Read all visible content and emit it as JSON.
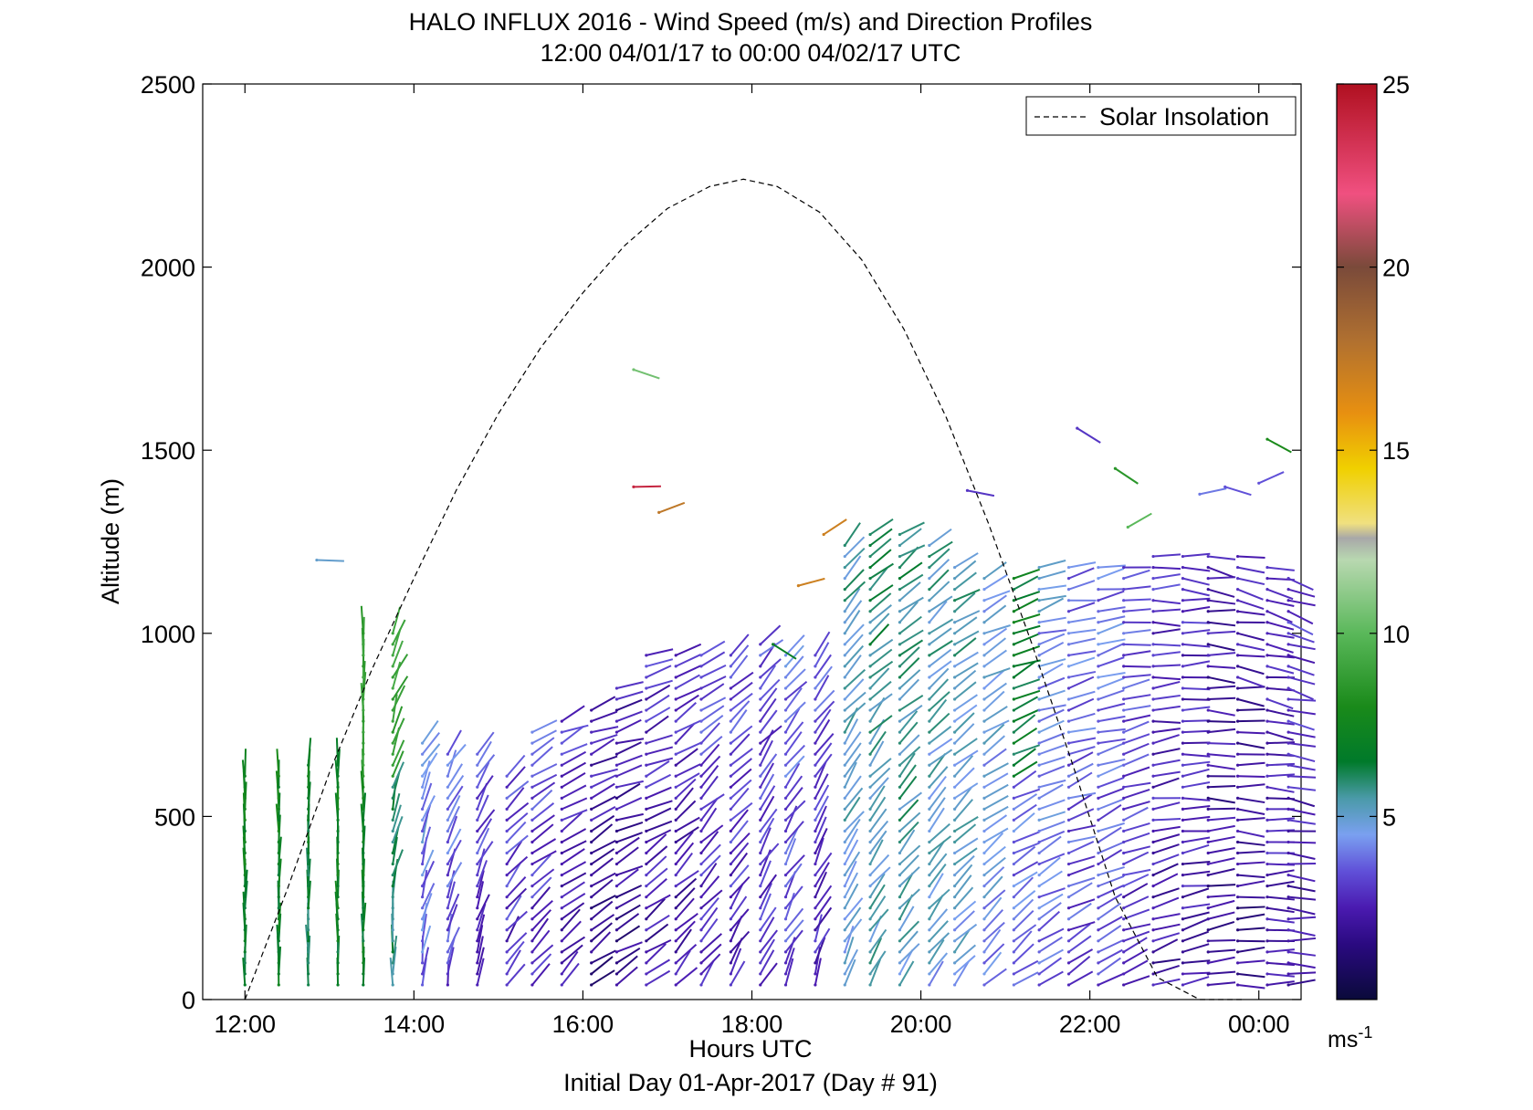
{
  "chart_data": {
    "type": "wind-barb-profile",
    "title_line1": "HALO INFLUX 2016 - Wind Speed (m/s) and Direction Profiles",
    "title_line2": "12:00 04/01/17 to 00:00 04/02/17  UTC",
    "xlabel": "Hours UTC",
    "xlabel2": "Initial Day 01-Apr-2017 (Day # 91)",
    "ylabel": "Altitude (m)",
    "xlim": [
      11.5,
      24.5
    ],
    "ylim": [
      0,
      2500
    ],
    "x_ticks": [
      {
        "value": 12,
        "label": "12:00"
      },
      {
        "value": 14,
        "label": "14:00"
      },
      {
        "value": 16,
        "label": "16:00"
      },
      {
        "value": 18,
        "label": "18:00"
      },
      {
        "value": 20,
        "label": "20:00"
      },
      {
        "value": 22,
        "label": "22:00"
      },
      {
        "value": 24,
        "label": "00:00"
      }
    ],
    "y_ticks": [
      0,
      500,
      1000,
      1500,
      2000,
      2500
    ],
    "legend": {
      "position": "top-right",
      "entries": [
        {
          "label": "Solar Insolation",
          "style": "dashed",
          "color": "#000000"
        }
      ]
    },
    "colorbar": {
      "min": 0,
      "max": 25,
      "ticks": [
        5,
        10,
        15,
        20,
        25
      ],
      "unit": "ms",
      "unit_superscript": "-1",
      "colormap": [
        [
          0,
          "#0a0a3a"
        ],
        [
          1.5,
          "#2a0a80"
        ],
        [
          2.5,
          "#4a1ab0"
        ],
        [
          3.5,
          "#6050d8"
        ],
        [
          4.5,
          "#7aa0f0"
        ],
        [
          5.5,
          "#4a9aa8"
        ],
        [
          6.5,
          "#007a2a"
        ],
        [
          8,
          "#1a8a1a"
        ],
        [
          10,
          "#5ab85a"
        ],
        [
          12,
          "#b8d8b0"
        ],
        [
          12.6,
          "#a8a8a8"
        ],
        [
          13,
          "#f0e080"
        ],
        [
          14.5,
          "#f0d000"
        ],
        [
          16,
          "#e89010"
        ],
        [
          18,
          "#b07030"
        ],
        [
          20,
          "#7a4a3a"
        ],
        [
          22,
          "#f05080"
        ],
        [
          25,
          "#b01020"
        ]
      ]
    },
    "solar_insolation": {
      "x": [
        12.0,
        12.5,
        13.0,
        13.5,
        14.0,
        14.5,
        15.0,
        15.5,
        16.0,
        16.5,
        17.0,
        17.5,
        17.9,
        18.3,
        18.8,
        19.3,
        19.8,
        20.3,
        20.8,
        21.3,
        21.8,
        22.3,
        22.8,
        23.3,
        23.8
      ],
      "y": [
        0,
        300,
        620,
        900,
        1150,
        1390,
        1600,
        1780,
        1930,
        2060,
        2160,
        2220,
        2240,
        2220,
        2150,
        2020,
        1830,
        1590,
        1300,
        980,
        640,
        280,
        60,
        0,
        0
      ]
    },
    "barb_columns": {
      "hours": [
        12.0,
        12.4,
        12.75,
        13.1,
        13.4,
        13.75,
        14.1,
        14.4,
        14.75,
        15.1,
        15.4,
        15.75,
        16.1,
        16.4,
        16.75,
        17.1,
        17.4,
        17.75,
        18.1,
        18.4,
        18.75,
        19.1,
        19.4,
        19.75,
        20.1,
        20.4,
        20.75,
        21.1,
        21.4,
        21.75,
        22.1,
        22.4,
        22.75,
        23.1,
        23.4,
        23.75,
        24.1,
        24.35
      ],
      "top_altitude_m": [
        620,
        620,
        660,
        660,
        1000,
        1000,
        700,
        670,
        670,
        620,
        730,
        760,
        790,
        850,
        950,
        950,
        960,
        960,
        970,
        960,
        960,
        1260,
        1280,
        1280,
        1260,
        1200,
        1160,
        1160,
        1180,
        1180,
        1200,
        1200,
        1220,
        1220,
        1230,
        1230,
        1200,
        1150
      ],
      "speed_m_s": [
        7.5,
        7.5,
        7.0,
        7.5,
        7.5,
        6.5,
        4.5,
        4.0,
        3.5,
        3.5,
        3.5,
        3.0,
        2.5,
        2.5,
        3.0,
        3.0,
        3.5,
        3.5,
        3.5,
        4.0,
        3.5,
        5.5,
        6.0,
        6.0,
        5.5,
        5.5,
        5.0,
        4.5,
        4.5,
        4.0,
        4.0,
        3.5,
        3.0,
        3.0,
        2.5,
        2.5,
        3.0,
        3.0
      ],
      "direction_deg": [
        175,
        175,
        180,
        180,
        190,
        195,
        200,
        200,
        205,
        220,
        230,
        235,
        240,
        245,
        240,
        230,
        225,
        220,
        215,
        215,
        210,
        215,
        220,
        225,
        225,
        230,
        235,
        240,
        245,
        250,
        250,
        255,
        260,
        265,
        270,
        275,
        275,
        280
      ]
    },
    "isolated_barbs": [
      {
        "hour": 12.85,
        "altitude": 1200,
        "speed": 5.0
      },
      {
        "hour": 16.6,
        "altitude": 1720,
        "speed": 10.5
      },
      {
        "hour": 16.6,
        "altitude": 1400,
        "speed": 24.0
      },
      {
        "hour": 16.9,
        "altitude": 1330,
        "speed": 17.5
      },
      {
        "hour": 18.55,
        "altitude": 1130,
        "speed": 17.0
      },
      {
        "hour": 18.85,
        "altitude": 1270,
        "speed": 17.0
      },
      {
        "hour": 18.25,
        "altitude": 970,
        "speed": 7.0
      },
      {
        "hour": 20.55,
        "altitude": 1390,
        "speed": 3.0
      },
      {
        "hour": 21.85,
        "altitude": 1560,
        "speed": 3.0
      },
      {
        "hour": 22.3,
        "altitude": 1450,
        "speed": 8.5
      },
      {
        "hour": 22.45,
        "altitude": 1290,
        "speed": 10.0
      },
      {
        "hour": 23.3,
        "altitude": 1380,
        "speed": 4.0
      },
      {
        "hour": 23.6,
        "altitude": 1400,
        "speed": 3.5
      },
      {
        "hour": 24.0,
        "altitude": 1410,
        "speed": 3.5
      },
      {
        "hour": 24.1,
        "altitude": 1530,
        "speed": 8.0
      }
    ]
  }
}
